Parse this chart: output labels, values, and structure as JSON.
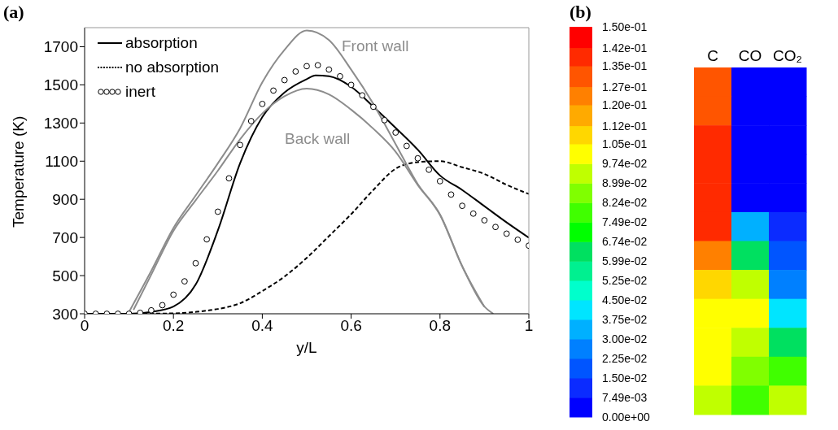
{
  "chart_data": [
    {
      "type": "line",
      "title": "(a)",
      "xlabel": "y/L",
      "ylabel": "Temperature (K)",
      "xlim": [
        0,
        1
      ],
      "ylim": [
        300,
        1800
      ],
      "xticks": [
        0,
        0.2,
        0.4,
        0.6,
        0.8,
        1
      ],
      "yticks": [
        300,
        500,
        700,
        900,
        1100,
        1300,
        1500,
        1700
      ],
      "grid": false,
      "legend": "top left",
      "marker": "none",
      "series": [
        {
          "name": "absorption",
          "color": "#000000",
          "line_style": "solid",
          "x": [
            0,
            0.05,
            0.1,
            0.12,
            0.15,
            0.2,
            0.25,
            0.3,
            0.35,
            0.4,
            0.45,
            0.5,
            0.52,
            0.55,
            0.6,
            0.65,
            0.7,
            0.75,
            0.8,
            0.85,
            0.9,
            0.95,
            1
          ],
          "values": [
            300,
            300,
            300,
            302,
            310,
            338,
            453,
            737,
            1089,
            1331,
            1460,
            1530,
            1550,
            1545,
            1490,
            1386,
            1275,
            1160,
            1025,
            949,
            864,
            779,
            699
          ]
        },
        {
          "name": "no absorption",
          "color": "#000000",
          "line_style": "dashed",
          "x": [
            0,
            0.1,
            0.2,
            0.25,
            0.3,
            0.35,
            0.4,
            0.45,
            0.5,
            0.55,
            0.6,
            0.65,
            0.7,
            0.75,
            0.8,
            0.85,
            0.9,
            0.95,
            1
          ],
          "values": [
            300,
            300,
            302,
            310,
            325,
            355,
            419,
            495,
            593,
            707,
            822,
            949,
            1060,
            1095,
            1100,
            1068,
            1033,
            976,
            928
          ]
        },
        {
          "name": "inert",
          "type": "scatter",
          "marker": "circle",
          "color": "#000000",
          "x": [
            0,
            0.025,
            0.05,
            0.075,
            0.1,
            0.125,
            0.15,
            0.175,
            0.2,
            0.225,
            0.25,
            0.275,
            0.3,
            0.325,
            0.35,
            0.375,
            0.4,
            0.425,
            0.45,
            0.475,
            0.5,
            0.525,
            0.55,
            0.575,
            0.6,
            0.625,
            0.65,
            0.675,
            0.7,
            0.725,
            0.75,
            0.775,
            0.8,
            0.825,
            0.85,
            0.875,
            0.9,
            0.925,
            0.95,
            0.975,
            1
          ],
          "values": [
            300,
            300,
            300,
            300,
            300,
            305,
            318,
            345,
            400,
            470,
            565,
            690,
            835,
            1010,
            1185,
            1310,
            1400,
            1470,
            1525,
            1570,
            1598,
            1603,
            1580,
            1545,
            1500,
            1445,
            1385,
            1315,
            1250,
            1180,
            1115,
            1055,
            995,
            925,
            866,
            825,
            790,
            755,
            720,
            688,
            657
          ]
        },
        {
          "name": "Front wall",
          "color": "#8c8c8c",
          "line_style": "solid",
          "x": [
            0.1,
            0.15,
            0.2,
            0.25,
            0.3,
            0.35,
            0.4,
            0.45,
            0.5,
            0.55,
            0.6,
            0.65,
            0.7,
            0.75,
            0.8,
            0.85,
            0.9,
            0.92
          ],
          "values": [
            310,
            525,
            750,
            920,
            1089,
            1272,
            1513,
            1683,
            1785,
            1735,
            1580,
            1400,
            1190,
            980,
            821,
            550,
            338,
            300
          ]
        },
        {
          "name": "Back wall",
          "color": "#8c8c8c",
          "line_style": "solid",
          "x": [
            0.11,
            0.15,
            0.2,
            0.25,
            0.3,
            0.35,
            0.4,
            0.45,
            0.5,
            0.55,
            0.6,
            0.65,
            0.7,
            0.75,
            0.8,
            0.85,
            0.9
          ],
          "values": [
            320,
            505,
            735,
            895,
            1050,
            1215,
            1350,
            1440,
            1480,
            1450,
            1370,
            1270,
            1150,
            975,
            818,
            548,
            336
          ]
        }
      ]
    },
    {
      "type": "heatmap",
      "title": "(b)",
      "categories": [
        "C",
        "CO",
        "CO₂"
      ],
      "y_categories": [
        null,
        null,
        null,
        null,
        null,
        null,
        null,
        null,
        null,
        null,
        null,
        null
      ],
      "cells": [
        [
          0.128,
          0.005,
          0.005
        ],
        [
          0.13,
          0.005,
          0.005
        ],
        [
          0.14,
          0.005,
          0.005
        ],
        [
          0.14,
          0.005,
          0.005
        ],
        [
          0.14,
          0.005,
          0.005
        ],
        [
          0.14,
          0.03,
          0.008
        ],
        [
          0.125,
          0.06,
          0.015
        ],
        [
          0.11,
          0.09,
          0.025
        ],
        [
          0.1,
          0.1,
          0.04
        ],
        [
          0.1,
          0.095,
          0.06
        ],
        [
          0.1,
          0.085,
          0.08
        ],
        [
          0.095,
          0.075,
          0.09
        ]
      ],
      "clim": [
        0,
        0.15
      ],
      "cticks": [
        {
          "value": 0.15,
          "label": "1.50e-01"
        },
        {
          "value": 0.142,
          "label": "1.42e-01"
        },
        {
          "value": 0.135,
          "label": "1.35e-01"
        },
        {
          "value": 0.127,
          "label": "1.27e-01"
        },
        {
          "value": 0.12,
          "label": "1.20e-01"
        },
        {
          "value": 0.112,
          "label": "1.12e-01"
        },
        {
          "value": 0.105,
          "label": "1.05e-01"
        },
        {
          "value": 0.0974,
          "label": "9.74e-02"
        },
        {
          "value": 0.0899,
          "label": "8.99e-02"
        },
        {
          "value": 0.0824,
          "label": "8.24e-02"
        },
        {
          "value": 0.0749,
          "label": "7.49e-02"
        },
        {
          "value": 0.0674,
          "label": "6.74e-02"
        },
        {
          "value": 0.0599,
          "label": "5.99e-02"
        },
        {
          "value": 0.0525,
          "label": "5.25e-02"
        },
        {
          "value": 0.045,
          "label": "4.50e-02"
        },
        {
          "value": 0.0375,
          "label": "3.75e-02"
        },
        {
          "value": 0.03,
          "label": "3.00e-02"
        },
        {
          "value": 0.0225,
          "label": "2.25e-02"
        },
        {
          "value": 0.015,
          "label": "1.50e-02"
        },
        {
          "value": 0.00749,
          "label": "7.49e-03"
        },
        {
          "value": 0,
          "label": "0.00e+00"
        }
      ]
    }
  ]
}
